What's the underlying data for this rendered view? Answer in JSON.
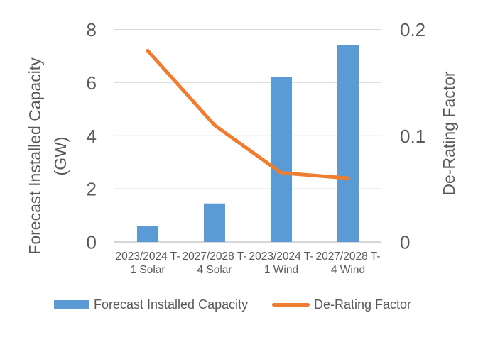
{
  "chart_data": {
    "type": "bar",
    "subtype": "bar-line-combo",
    "title": "",
    "categories": [
      "2023/2024 T-1 Solar",
      "2027/2028 T-4 Solar",
      "2023/2024 T-1 Wind",
      "2027/2028 T-4 Wind"
    ],
    "category_label_lines": [
      [
        "2023/2024 T-",
        "1 Solar"
      ],
      [
        "2027/2028 T-",
        "4 Solar"
      ],
      [
        "2023/2024 T-",
        "1 Wind"
      ],
      [
        "2027/2028 T-",
        "4 Wind"
      ]
    ],
    "series": [
      {
        "name": "Forecast Installed Capacity",
        "type": "bar",
        "axis": "left",
        "values": [
          0.6,
          1.45,
          6.2,
          7.4
        ],
        "color": "#5B9BD5"
      },
      {
        "name": "De-Rating Factor",
        "type": "line",
        "axis": "right",
        "values": [
          0.18,
          0.11,
          0.065,
          0.06
        ],
        "color": "#ED7D31"
      }
    ],
    "left_axis": {
      "label": "Forecast Installed Capacity (GW)",
      "label_lines": [
        "Forecast Installed Capacity",
        "(GW)"
      ],
      "min": 0,
      "max": 8,
      "ticks": [
        0,
        2,
        4,
        6,
        8
      ]
    },
    "right_axis": {
      "label": "De-Rating Factor",
      "min": 0,
      "max": 0.2,
      "ticks": [
        0,
        0.1,
        0.2
      ]
    },
    "grid": true,
    "legend_position": "bottom",
    "colors": {
      "bar": "#5B9BD5",
      "line": "#ED7D31",
      "gridline": "#D9D9D9",
      "baseline": "#C9C9C9",
      "text": "#595959",
      "background": "#FFFFFF"
    }
  }
}
